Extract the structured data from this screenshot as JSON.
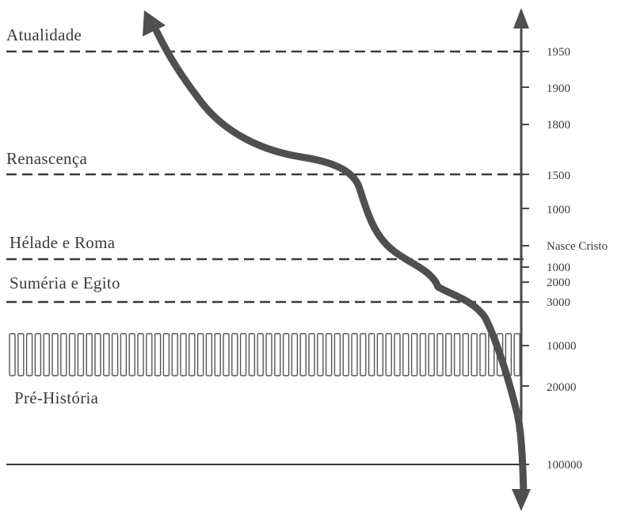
{
  "eras": [
    {
      "label": "Atualidade"
    },
    {
      "label": "Renascença"
    },
    {
      "label": "Hélade e Roma"
    },
    {
      "label": "Suméria e Egito"
    },
    {
      "label": "Pré-História"
    }
  ],
  "axis_ticks": [
    {
      "label": "1950"
    },
    {
      "label": "1900"
    },
    {
      "label": "1800"
    },
    {
      "label": "1500"
    },
    {
      "label": "1000"
    },
    {
      "label": "Nasce Cristo"
    },
    {
      "label": "1000"
    },
    {
      "label": "2000"
    },
    {
      "label": "3000"
    },
    {
      "label": "10000"
    },
    {
      "label": "20000"
    },
    {
      "label": "100000"
    }
  ]
}
